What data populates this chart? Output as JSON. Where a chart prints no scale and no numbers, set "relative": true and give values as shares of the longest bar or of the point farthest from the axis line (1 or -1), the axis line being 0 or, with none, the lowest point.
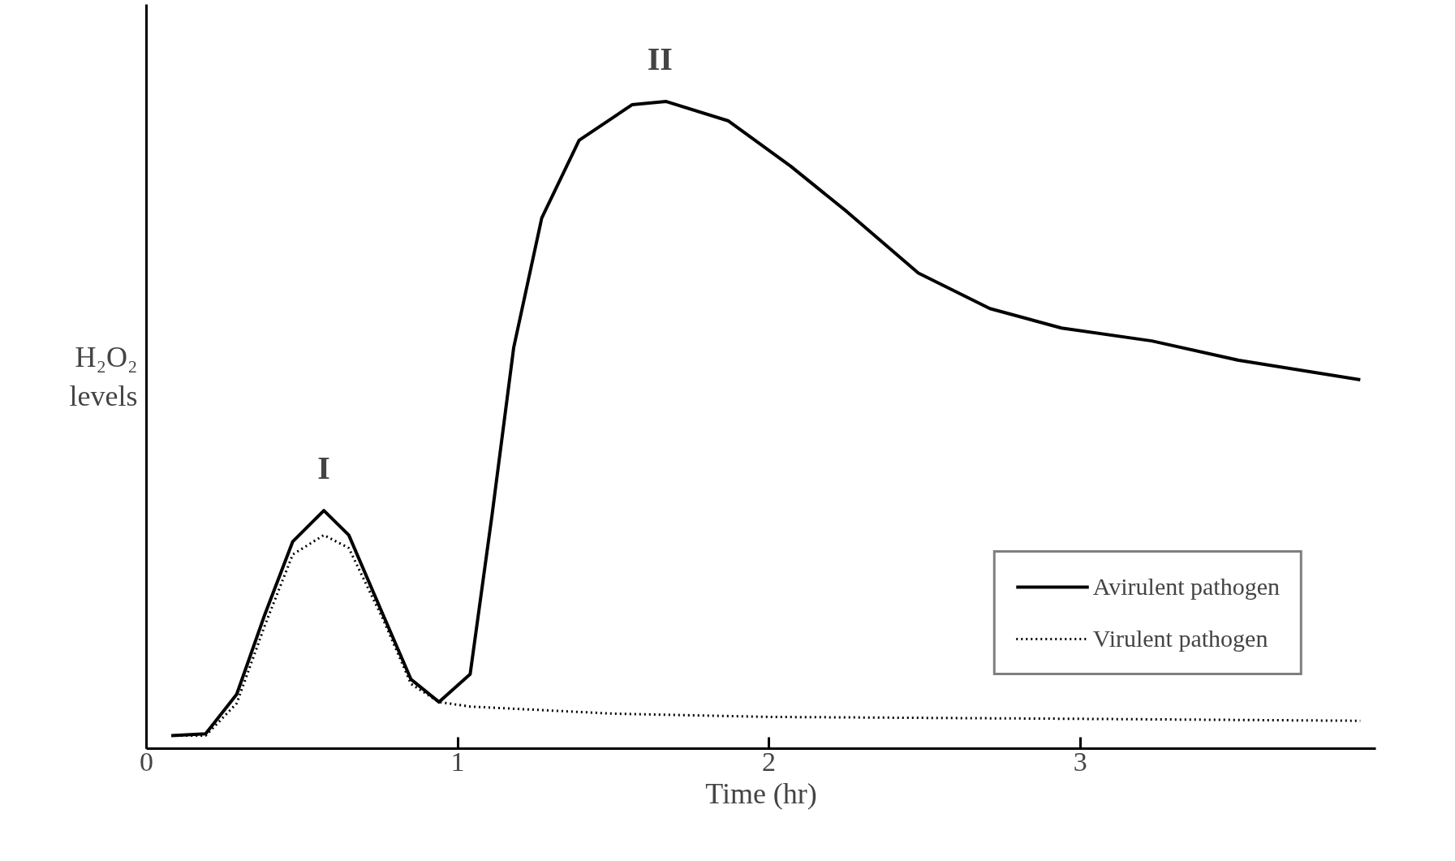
{
  "chart_data": {
    "type": "line",
    "relative": true,
    "xlabel": "Time (hr)",
    "ylabel": "H₂O₂ levels",
    "xlim": [
      0,
      3.95
    ],
    "xticks": [
      0,
      1,
      2,
      3
    ],
    "tick_labels": "x",
    "grid": false,
    "legend": "bottom right",
    "marker": "none",
    "series": [
      {
        "name": "Avirulent pathogen",
        "color": "#000000",
        "line_style": "solid",
        "x": [
          0.08,
          0.19,
          0.29,
          0.38,
          0.47,
          0.57,
          0.65,
          0.76,
          0.85,
          0.94,
          1.04,
          1.11,
          1.18,
          1.27,
          1.39,
          1.56,
          1.67,
          1.87,
          2.07,
          2.25,
          2.48,
          2.71,
          2.94,
          3.23,
          3.51,
          3.9
        ],
        "values": [
          0.02,
          0.023,
          0.084,
          0.207,
          0.32,
          0.368,
          0.33,
          0.207,
          0.107,
          0.072,
          0.115,
          0.36,
          0.62,
          0.82,
          0.94,
          0.995,
          1.0,
          0.97,
          0.9,
          0.83,
          0.735,
          0.68,
          0.65,
          0.63,
          0.6,
          0.57
        ]
      },
      {
        "name": "Virulent pathogen",
        "color": "#000000",
        "line_style": "dotted",
        "x": [
          0.08,
          0.19,
          0.29,
          0.38,
          0.47,
          0.57,
          0.65,
          0.76,
          0.85,
          0.94,
          1.04,
          1.5,
          2.0,
          3.0,
          3.9
        ],
        "values": [
          0.02,
          0.02,
          0.07,
          0.19,
          0.3,
          0.33,
          0.31,
          0.2,
          0.1,
          0.072,
          0.065,
          0.054,
          0.049,
          0.046,
          0.043
        ]
      }
    ],
    "annotations": [
      {
        "text": "I",
        "x": 0.57,
        "y": 0.368
      },
      {
        "text": "II",
        "x": 1.65,
        "y": 1.0
      }
    ]
  }
}
